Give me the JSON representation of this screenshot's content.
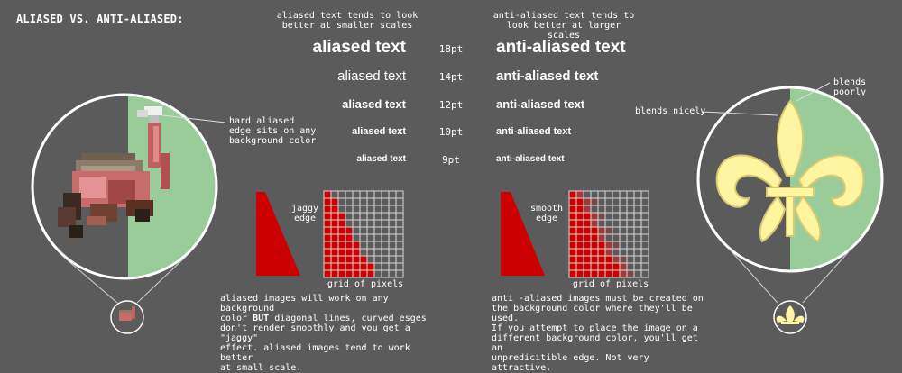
{
  "title": "ALIASED VS. ANTI-ALIASED:",
  "notes": {
    "aliased_line1": "aliased text tends to look",
    "aliased_line2": "better at smaller scales",
    "anti_line1": "anti-aliased text tends to",
    "anti_line2": "look better at larger scales"
  },
  "samples": {
    "aliased_text": "aliased text",
    "anti_text": "anti-aliased text",
    "sizes": [
      "18pt",
      "14pt",
      "12pt",
      "10pt",
      "9pt"
    ]
  },
  "left_callout": [
    "hard aliased",
    "edge sits on any",
    "background color"
  ],
  "right_callouts": {
    "poorly": "blends poorly",
    "nicely": "blends nicely"
  },
  "jaggy": {
    "line1": "jaggy",
    "line2": "edge"
  },
  "smooth": {
    "line1": "smooth",
    "line2": "edge"
  },
  "grid_label": "grid of pixels",
  "left_para": [
    "aliased images will work on any background",
    "effect. aliased images tend to work better",
    "at small scale."
  ],
  "left_para_line2": {
    "pre": "color ",
    "bold": "BUT",
    "post": " diagonal lines, curved esges"
  },
  "left_para_line3": "don't render smoothly and you get a \"jaggy\"",
  "right_para": [
    "anti -aliased images must be created on",
    "the background color where they'll be used.",
    "If you attempt to place the image on a",
    "different background color, you'll get an",
    "unpredicitible edge. Not very attractive."
  ],
  "colors": {
    "bg": "#5b5b5b",
    "green": "#99cc99",
    "red": "#cc0000",
    "yellow": "#fff4a0"
  }
}
